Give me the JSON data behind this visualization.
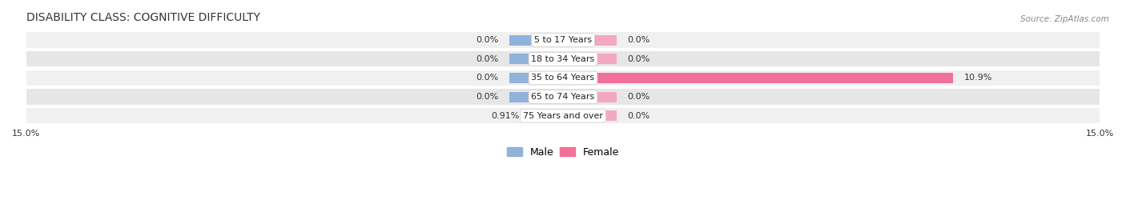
{
  "title": "DISABILITY CLASS: COGNITIVE DIFFICULTY",
  "source": "Source: ZipAtlas.com",
  "categories": [
    "5 to 17 Years",
    "18 to 34 Years",
    "35 to 64 Years",
    "65 to 74 Years",
    "75 Years and over"
  ],
  "male_values": [
    0.0,
    0.0,
    0.0,
    0.0,
    0.91
  ],
  "female_values": [
    0.0,
    0.0,
    10.9,
    0.0,
    0.0
  ],
  "male_labels": [
    "0.0%",
    "0.0%",
    "0.0%",
    "0.0%",
    "0.91%"
  ],
  "female_labels": [
    "0.0%",
    "0.0%",
    "10.9%",
    "0.0%",
    "0.0%"
  ],
  "xlim": 15.0,
  "male_color": "#8fb3d9",
  "female_color": "#f07098",
  "female_color_light": "#f4a8c0",
  "row_colors": [
    "#f0f0f0",
    "#e6e6e6",
    "#f0f0f0",
    "#e6e6e6",
    "#f0f0f0"
  ],
  "title_fontsize": 10,
  "label_fontsize": 8,
  "legend_fontsize": 9,
  "min_bar_display": 1.5,
  "zero_bar_display": 1.5
}
